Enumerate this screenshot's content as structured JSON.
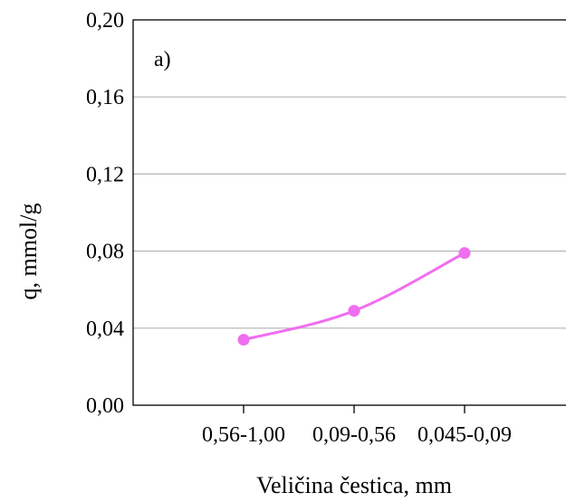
{
  "chart_data": {
    "type": "line",
    "panel_label": "a)",
    "xlabel": "Veličina čestica, mm",
    "ylabel": "q, mmol/g",
    "categories": [
      "0,56-1,00",
      "0,09-0,56",
      "0,045-0,09"
    ],
    "series": [
      {
        "values": [
          0.034,
          0.049,
          0.079
        ],
        "color": "#F06EF0"
      }
    ],
    "ylim": [
      0,
      0.2
    ],
    "yticks": [
      "0,00",
      "0,04",
      "0,08",
      "0,12",
      "0,16",
      "0,20"
    ],
    "y_grid": true,
    "smoothed": true
  }
}
